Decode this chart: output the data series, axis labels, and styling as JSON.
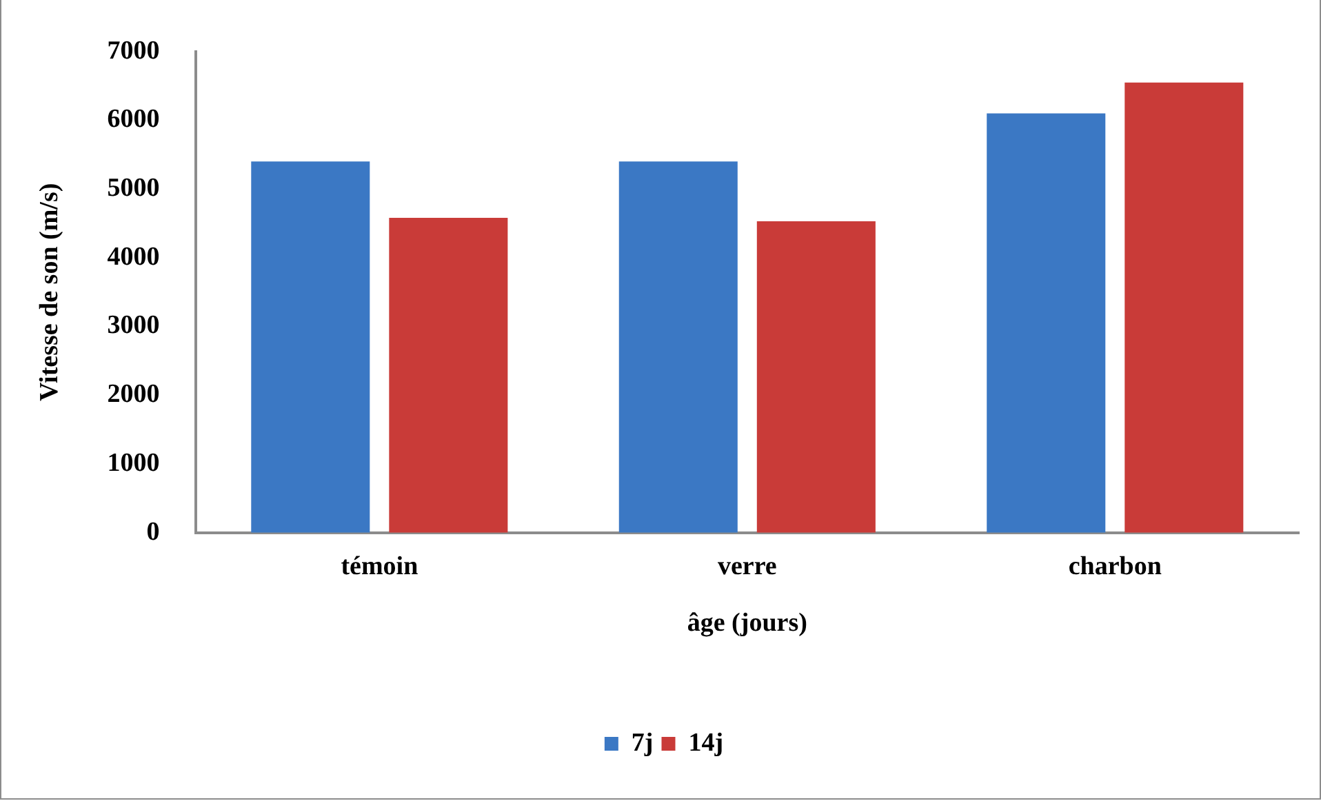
{
  "chart_data": {
    "type": "bar",
    "xlabel": "âge (jours)",
    "ylabel": "Vitesse de son (m/s)",
    "categories": [
      "témoin",
      "verre",
      "charbon"
    ],
    "series": [
      {
        "name": "7j",
        "color": "#3b78c4",
        "values": [
          5400,
          5400,
          6100
        ]
      },
      {
        "name": "14j",
        "color": "#c93b38",
        "values": [
          4580,
          4530,
          6550
        ]
      }
    ],
    "ylim": [
      0,
      7000
    ],
    "yticks": [
      0,
      1000,
      2000,
      3000,
      4000,
      5000,
      6000,
      7000
    ],
    "grid": false,
    "legend": "bottom"
  }
}
